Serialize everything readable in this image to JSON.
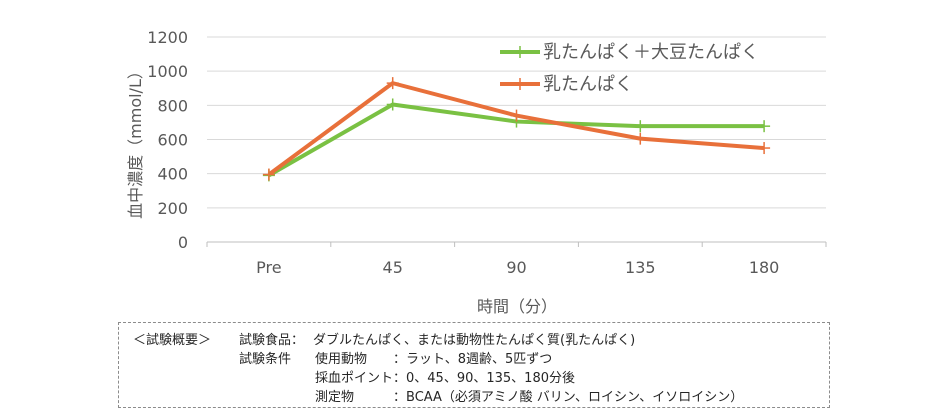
{
  "chart_data": {
    "type": "line",
    "categories": [
      "Pre",
      "45",
      "90",
      "135",
      "180"
    ],
    "series": [
      {
        "name": "乳たんぱく＋大豆たんぱく",
        "color": "#7ac143",
        "values": [
          390,
          805,
          705,
          678,
          678
        ]
      },
      {
        "name": "乳たんぱく",
        "color": "#e8703a",
        "values": [
          395,
          930,
          740,
          605,
          550
        ]
      }
    ],
    "yticks": [
      "0",
      "200",
      "400",
      "600",
      "800",
      "1000",
      "1200"
    ],
    "ylim": [
      0,
      1200
    ],
    "ylabel": "血中濃度（mmol/L）",
    "xlabel": "時間（分）",
    "grid": true,
    "legend": "top-right"
  },
  "note": {
    "heading": "＜試験概要＞",
    "label_food": "試験食品：",
    "food": "ダブルたんぱく、または動物性たんぱく質(乳たんぱく)",
    "label_conditions": "試験条件",
    "animal_label": "使用動物",
    "animal": "：ラット、8週齢、5匹ずつ",
    "sampling_label": "採血ポイント",
    "sampling": "：0、45、90、135、180分後",
    "measure_label": "測定物",
    "measure": "：BCAA（必須アミノ酸 バリン、ロイシン、イソロイシン）"
  }
}
